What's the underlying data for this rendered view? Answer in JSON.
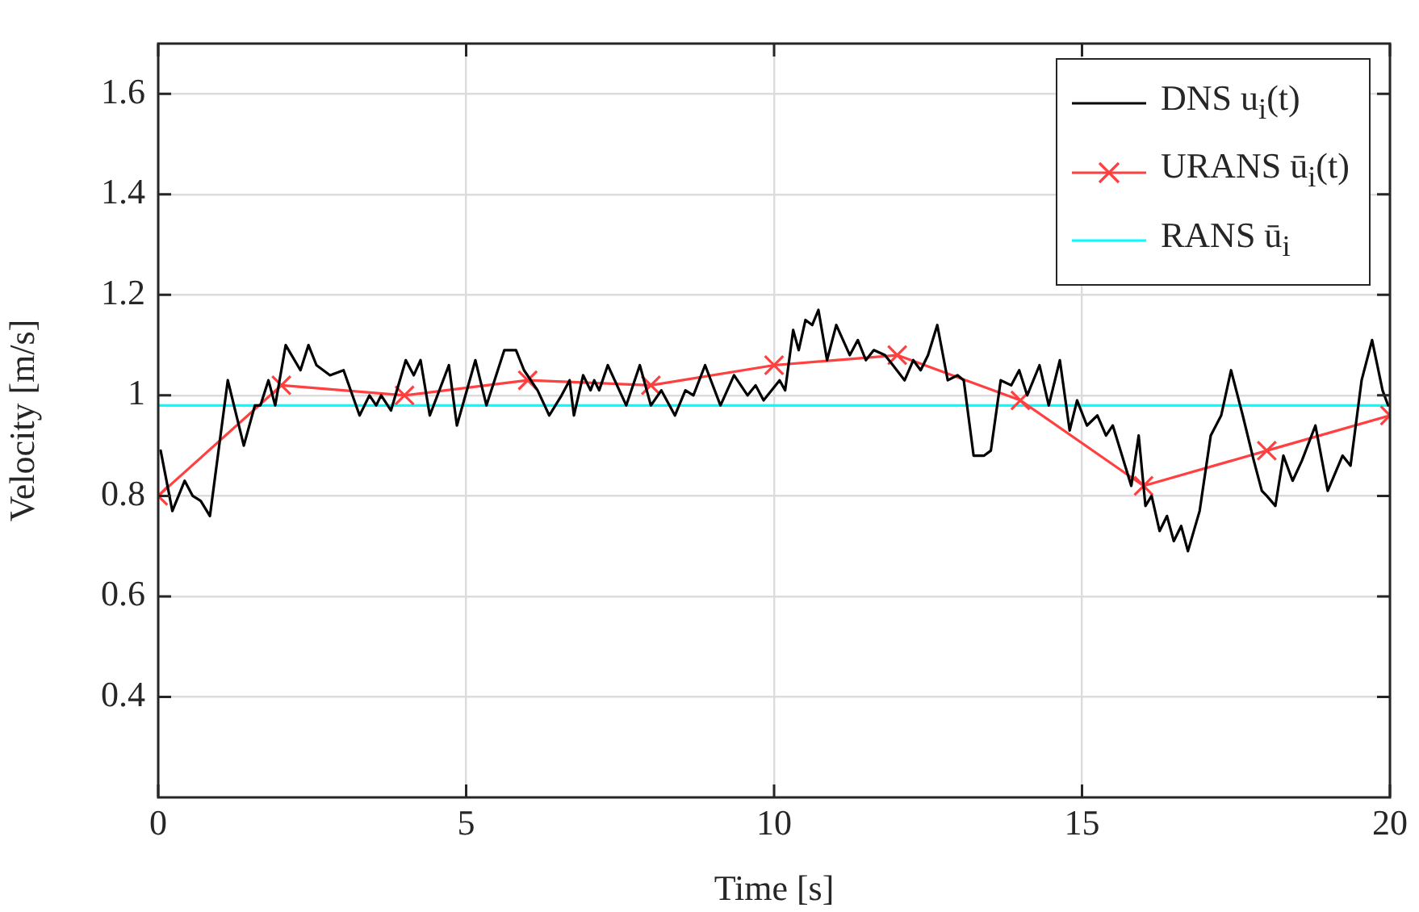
{
  "chart_data": {
    "type": "line",
    "xlabel": "Time [s]",
    "ylabel": "Velocity [m/s]",
    "xlim": [
      0,
      20
    ],
    "ylim": [
      0.2,
      1.7
    ],
    "xticks": [
      0,
      5,
      10,
      15,
      20
    ],
    "yticks": [
      0.4,
      0.6,
      0.8,
      1,
      1.2,
      1.4,
      1.6
    ],
    "grid": true,
    "legend": "top right",
    "line_style": "solid",
    "series": [
      {
        "name": "DNS u$_{i}$(t)",
        "color": "#000000",
        "marker": "none",
        "x": [
          0.04,
          0.23,
          0.43,
          0.56,
          0.69,
          0.84,
          1.13,
          1.39,
          1.57,
          1.66,
          1.79,
          1.9,
          2.07,
          2.31,
          2.44,
          2.57,
          2.79,
          3.01,
          3.27,
          3.43,
          3.54,
          3.62,
          3.78,
          4.02,
          4.15,
          4.26,
          4.41,
          4.72,
          4.85,
          5.15,
          5.33,
          5.62,
          5.81,
          5.94,
          6.16,
          6.35,
          6.55,
          6.68,
          6.75,
          6.9,
          7.02,
          7.08,
          7.16,
          7.3,
          7.6,
          7.82,
          8.0,
          8.17,
          8.39,
          8.56,
          8.69,
          8.88,
          9.13,
          9.35,
          9.57,
          9.7,
          9.83,
          10.09,
          10.18,
          10.31,
          10.4,
          10.51,
          10.62,
          10.72,
          10.86,
          11.01,
          11.23,
          11.36,
          11.49,
          11.62,
          11.8,
          11.93,
          12.12,
          12.26,
          12.38,
          12.5,
          12.65,
          12.82,
          12.98,
          13.08,
          13.24,
          13.41,
          13.52,
          13.68,
          13.85,
          13.98,
          14.11,
          14.31,
          14.46,
          14.64,
          14.8,
          14.92,
          15.08,
          15.25,
          15.39,
          15.5,
          15.65,
          15.8,
          15.92,
          16.03,
          16.13,
          16.26,
          16.38,
          16.49,
          16.61,
          16.72,
          16.91,
          17.09,
          17.26,
          17.42,
          17.61,
          17.79,
          17.92,
          18.0,
          18.14,
          18.27,
          18.42,
          18.57,
          18.79,
          18.99,
          19.23,
          19.36,
          19.54,
          19.71,
          19.88,
          19.97
        ],
        "values": [
          0.89,
          0.77,
          0.83,
          0.8,
          0.79,
          0.76,
          1.03,
          0.9,
          0.98,
          0.98,
          1.03,
          0.98,
          1.1,
          1.05,
          1.1,
          1.06,
          1.04,
          1.05,
          0.96,
          1.0,
          0.98,
          1.0,
          0.97,
          1.07,
          1.04,
          1.07,
          0.96,
          1.06,
          0.94,
          1.07,
          0.98,
          1.09,
          1.09,
          1.05,
          1.01,
          0.96,
          1.0,
          1.03,
          0.96,
          1.04,
          1.01,
          1.03,
          1.01,
          1.06,
          0.98,
          1.06,
          0.98,
          1.01,
          0.96,
          1.01,
          1.0,
          1.06,
          0.98,
          1.04,
          1.0,
          1.02,
          0.99,
          1.03,
          1.01,
          1.13,
          1.09,
          1.15,
          1.14,
          1.17,
          1.07,
          1.14,
          1.08,
          1.11,
          1.07,
          1.09,
          1.08,
          1.06,
          1.03,
          1.07,
          1.05,
          1.08,
          1.14,
          1.03,
          1.04,
          1.03,
          0.88,
          0.88,
          0.89,
          1.03,
          1.02,
          1.05,
          1.0,
          1.06,
          0.98,
          1.07,
          0.93,
          0.99,
          0.94,
          0.96,
          0.92,
          0.94,
          0.88,
          0.82,
          0.92,
          0.78,
          0.8,
          0.73,
          0.76,
          0.71,
          0.74,
          0.69,
          0.77,
          0.92,
          0.96,
          1.05,
          0.96,
          0.87,
          0.81,
          0.8,
          0.78,
          0.88,
          0.83,
          0.87,
          0.94,
          0.81,
          0.88,
          0.86,
          1.03,
          1.11,
          1.01,
          0.98
        ]
      },
      {
        "name": "URANS ū$_{i}$(t)",
        "color": "#ff4040",
        "marker": "cross",
        "x": [
          0,
          2,
          4,
          6,
          8,
          10,
          12,
          14,
          16,
          18,
          20
        ],
        "values": [
          0.8,
          1.02,
          1.0,
          1.03,
          1.02,
          1.06,
          1.08,
          0.99,
          0.82,
          0.89,
          0.96
        ]
      },
      {
        "name": "RANS ū$_{i}$",
        "color": "#00ffff",
        "marker": "none",
        "x": [
          0,
          20
        ],
        "values": [
          0.98,
          0.98
        ]
      }
    ]
  }
}
